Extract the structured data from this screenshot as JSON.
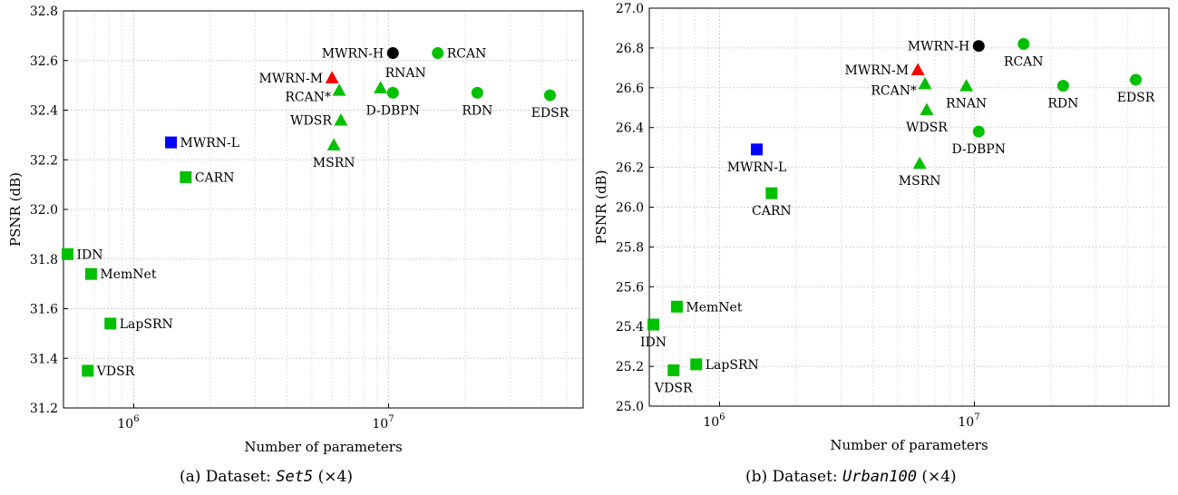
{
  "chart_data": [
    {
      "type": "scatter",
      "caption_prefix": "(a) Dataset:",
      "caption_dataset": "Set5",
      "caption_suffix": "(×4)",
      "xlabel": "Number of parameters",
      "ylabel": "PSNR (dB)",
      "xscale": "log",
      "xlim": [
        530000,
        58000000
      ],
      "ylim": [
        31.2,
        32.8
      ],
      "yticks": [
        "31.2",
        "31.4",
        "31.6",
        "31.8",
        "32.0",
        "32.2",
        "32.4",
        "32.6",
        "32.8"
      ],
      "xticks": [
        {
          "v": 1000000,
          "label": "10",
          "exp": "6"
        },
        {
          "v": 10000000,
          "label": "10",
          "exp": "7"
        }
      ],
      "grid": true,
      "points": [
        {
          "name": "MWRN-H",
          "x": 10400000,
          "y": 32.63,
          "marker": "circle",
          "color": "#000000",
          "label_pos": "left"
        },
        {
          "name": "RCAN",
          "x": 15600000,
          "y": 32.63,
          "marker": "circle",
          "color": "#00c000",
          "label_pos": "right"
        },
        {
          "name": "MWRN-M",
          "x": 6000000,
          "y": 32.53,
          "marker": "triangle",
          "color": "#ff0000",
          "label_pos": "left"
        },
        {
          "name": "RNAN",
          "x": 9300000,
          "y": 32.49,
          "marker": "triangle",
          "color": "#00c000",
          "label_pos": "above-right"
        },
        {
          "name": "RCAN*",
          "x": 6400000,
          "y": 32.48,
          "marker": "triangle",
          "color": "#00c000",
          "label_pos": "left-below"
        },
        {
          "name": "D-DBPN",
          "x": 10400000,
          "y": 32.47,
          "marker": "circle",
          "color": "#00c000",
          "label_pos": "below"
        },
        {
          "name": "RDN",
          "x": 22300000,
          "y": 32.47,
          "marker": "circle",
          "color": "#00c000",
          "label_pos": "below"
        },
        {
          "name": "EDSR",
          "x": 43000000,
          "y": 32.46,
          "marker": "circle",
          "color": "#00c000",
          "label_pos": "below"
        },
        {
          "name": "WDSR",
          "x": 6500000,
          "y": 32.36,
          "marker": "triangle",
          "color": "#00c000",
          "label_pos": "left"
        },
        {
          "name": "MSRN",
          "x": 6100000,
          "y": 32.26,
          "marker": "triangle",
          "color": "#00c000",
          "label_pos": "below"
        },
        {
          "name": "MWRN-L",
          "x": 1400000,
          "y": 32.27,
          "marker": "square",
          "color": "#0000ff",
          "label_pos": "right"
        },
        {
          "name": "CARN",
          "x": 1600000,
          "y": 32.13,
          "marker": "square",
          "color": "#00c000",
          "label_pos": "right"
        },
        {
          "name": "IDN",
          "x": 550000,
          "y": 31.82,
          "marker": "square",
          "color": "#00c000",
          "label_pos": "right"
        },
        {
          "name": "MemNet",
          "x": 680000,
          "y": 31.74,
          "marker": "square",
          "color": "#00c000",
          "label_pos": "right"
        },
        {
          "name": "LapSRN",
          "x": 810000,
          "y": 31.54,
          "marker": "square",
          "color": "#00c000",
          "label_pos": "right"
        },
        {
          "name": "VDSR",
          "x": 660000,
          "y": 31.35,
          "marker": "square",
          "color": "#00c000",
          "label_pos": "right"
        }
      ]
    },
    {
      "type": "scatter",
      "caption_prefix": "(b) Dataset:",
      "caption_dataset": "Urban100",
      "caption_suffix": "(×4)",
      "xlabel": "Number of parameters",
      "ylabel": "PSNR (dB)",
      "xscale": "log",
      "xlim": [
        530000,
        58000000
      ],
      "ylim": [
        25.0,
        27.0
      ],
      "yticks": [
        "25.0",
        "25.2",
        "25.4",
        "25.6",
        "25.8",
        "26.0",
        "26.2",
        "26.4",
        "26.6",
        "26.8",
        "27.0"
      ],
      "xticks": [
        {
          "v": 1000000,
          "label": "10",
          "exp": "6"
        },
        {
          "v": 10000000,
          "label": "10",
          "exp": "7"
        }
      ],
      "grid": true,
      "points": [
        {
          "name": "MWRN-H",
          "x": 10400000,
          "y": 26.81,
          "marker": "circle",
          "color": "#000000",
          "label_pos": "left"
        },
        {
          "name": "RCAN",
          "x": 15600000,
          "y": 26.82,
          "marker": "circle",
          "color": "#00c000",
          "label_pos": "below"
        },
        {
          "name": "MWRN-M",
          "x": 6000000,
          "y": 26.69,
          "marker": "triangle",
          "color": "#ff0000",
          "label_pos": "left"
        },
        {
          "name": "RCAN*",
          "x": 6400000,
          "y": 26.62,
          "marker": "triangle",
          "color": "#00c000",
          "label_pos": "left-below"
        },
        {
          "name": "RNAN",
          "x": 9300000,
          "y": 26.61,
          "marker": "triangle",
          "color": "#00c000",
          "label_pos": "below"
        },
        {
          "name": "RDN",
          "x": 22300000,
          "y": 26.61,
          "marker": "circle",
          "color": "#00c000",
          "label_pos": "below"
        },
        {
          "name": "EDSR",
          "x": 43000000,
          "y": 26.64,
          "marker": "circle",
          "color": "#00c000",
          "label_pos": "below"
        },
        {
          "name": "WDSR",
          "x": 6500000,
          "y": 26.49,
          "marker": "triangle",
          "color": "#00c000",
          "label_pos": "below"
        },
        {
          "name": "D-DBPN",
          "x": 10400000,
          "y": 26.38,
          "marker": "circle",
          "color": "#00c000",
          "label_pos": "below"
        },
        {
          "name": "MSRN",
          "x": 6100000,
          "y": 26.22,
          "marker": "triangle",
          "color": "#00c000",
          "label_pos": "below"
        },
        {
          "name": "MWRN-L",
          "x": 1400000,
          "y": 26.29,
          "marker": "square",
          "color": "#0000ff",
          "label_pos": "below"
        },
        {
          "name": "CARN",
          "x": 1600000,
          "y": 26.07,
          "marker": "square",
          "color": "#00c000",
          "label_pos": "below"
        },
        {
          "name": "MemNet",
          "x": 680000,
          "y": 25.5,
          "marker": "square",
          "color": "#00c000",
          "label_pos": "right"
        },
        {
          "name": "IDN",
          "x": 550000,
          "y": 25.41,
          "marker": "square",
          "color": "#00c000",
          "label_pos": "below"
        },
        {
          "name": "LapSRN",
          "x": 810000,
          "y": 25.21,
          "marker": "square",
          "color": "#00c000",
          "label_pos": "right"
        },
        {
          "name": "VDSR",
          "x": 660000,
          "y": 25.18,
          "marker": "square",
          "color": "#00c000",
          "label_pos": "below"
        }
      ]
    }
  ]
}
